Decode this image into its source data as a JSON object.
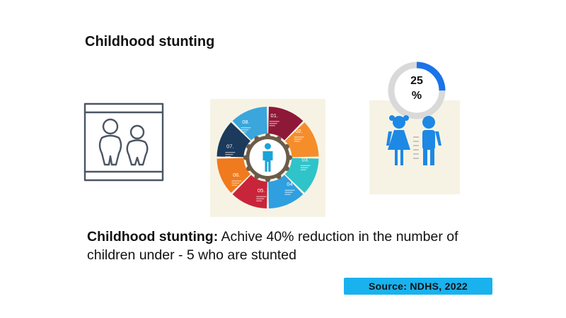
{
  "slide": {
    "title": "Childhood stunting"
  },
  "target": {
    "label": "Childhood stunting:",
    "text": " Achive 40% reduction in the number of children under - 5 who are stunted"
  },
  "indicator": {
    "value": 25,
    "label_number": "25",
    "label_unit": "%",
    "ring_color": "#1a73e8",
    "track_color": "#d9d9d9"
  },
  "cycle": {
    "segments": [
      {
        "label": "01.",
        "color": "#8e1838"
      },
      {
        "label": "02.",
        "color": "#f58d2a"
      },
      {
        "label": "03.",
        "color": "#2ec4c9"
      },
      {
        "label": "04",
        "color": "#2f9fe0"
      },
      {
        "label": "05.",
        "color": "#c9253a"
      },
      {
        "label": "06.",
        "color": "#f07a1e"
      },
      {
        "label": "07.",
        "color": "#1b3a5c"
      },
      {
        "label": "08.",
        "color": "#3aa6dc"
      }
    ],
    "center_icon": "person-icon"
  },
  "source": {
    "label": "Source: NDHS, 2022",
    "color": "#19b2ee"
  },
  "icons": {
    "children_frame": "children-outline-icon",
    "kids": "boy-girl-icon"
  }
}
